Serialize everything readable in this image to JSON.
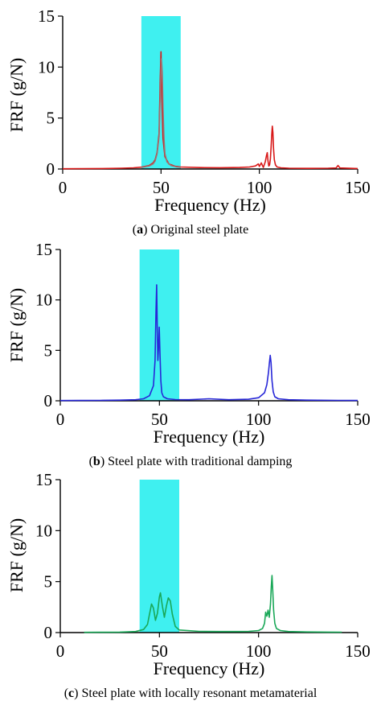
{
  "figure": {
    "background": "#ffffff",
    "band_color": "#3ff0f0",
    "axis_color": "#000000"
  },
  "chart_data": [
    {
      "type": "line",
      "caption_letter": "a",
      "caption_text": "Original steel plate",
      "xlabel": "Frequency (Hz)",
      "ylabel": "FRF (g/N)",
      "xlim": [
        0,
        150
      ],
      "ylim": [
        0,
        15
      ],
      "xticks": [
        0,
        50,
        100,
        150
      ],
      "yticks": [
        0,
        5,
        10,
        15
      ],
      "highlight_band": [
        40,
        60
      ],
      "series": [
        {
          "color": "#d81818",
          "x": [
            0,
            10,
            20,
            30,
            36,
            40,
            44,
            46,
            47,
            48,
            49,
            49.6,
            50,
            50.4,
            51,
            52,
            54,
            57,
            60,
            70,
            80,
            90,
            95,
            98,
            99.5,
            100,
            101,
            102,
            103,
            103.6,
            104,
            104.4,
            104.8,
            105.2,
            105.6,
            106,
            106.3,
            106.6,
            106.9,
            107.2,
            107.6,
            108.2,
            109,
            111,
            115,
            125,
            135,
            139,
            140,
            141,
            150
          ],
          "y": [
            0.02,
            0.03,
            0.05,
            0.08,
            0.12,
            0.18,
            0.35,
            0.6,
            0.9,
            1.6,
            3.5,
            9.0,
            11.5,
            7.0,
            3.0,
            1.2,
            0.5,
            0.28,
            0.2,
            0.14,
            0.13,
            0.15,
            0.2,
            0.3,
            0.5,
            0.25,
            0.6,
            0.15,
            0.7,
            1.3,
            1.6,
            0.8,
            0.3,
            0.4,
            1.0,
            2.2,
            3.4,
            4.2,
            3.6,
            2.0,
            0.9,
            0.4,
            0.2,
            0.12,
            0.08,
            0.06,
            0.08,
            0.1,
            0.35,
            0.1,
            0.05
          ]
        },
        {
          "color": "#a07070",
          "x": [
            40,
            44,
            46,
            47,
            48,
            49,
            49.7,
            50.2,
            50.6,
            51,
            51.5,
            52,
            53,
            55,
            58,
            60
          ],
          "y": [
            0.15,
            0.3,
            0.5,
            0.8,
            1.5,
            3.2,
            8.0,
            10.8,
            9.5,
            6.0,
            3.0,
            1.5,
            0.7,
            0.35,
            0.2,
            0.15
          ]
        }
      ]
    },
    {
      "type": "line",
      "caption_letter": "b",
      "caption_text": "Steel plate with traditional damping",
      "xlabel": "Frequency (Hz)",
      "ylabel": "FRF (g/N)",
      "xlim": [
        0,
        150
      ],
      "ylim": [
        0,
        15
      ],
      "xticks": [
        0,
        50,
        100,
        150
      ],
      "yticks": [
        0,
        5,
        10,
        15
      ],
      "highlight_band": [
        40,
        60
      ],
      "series": [
        {
          "color": "#2828d8",
          "x": [
            0,
            10,
            20,
            30,
            38,
            42,
            45,
            47,
            47.8,
            48.3,
            48.6,
            48.9,
            49.2,
            49.5,
            49.9,
            50.3,
            50.7,
            51.2,
            52,
            54,
            58,
            65,
            75,
            85,
            95,
            100,
            103,
            104.2,
            105,
            105.5,
            105.9,
            106.3,
            106.8,
            107.4,
            108.2,
            110,
            115,
            125,
            140,
            150
          ],
          "y": [
            0.02,
            0.03,
            0.04,
            0.06,
            0.1,
            0.2,
            0.5,
            1.5,
            4.0,
            9.0,
            11.5,
            7.5,
            4.0,
            5.0,
            7.3,
            4.5,
            2.0,
            0.8,
            0.4,
            0.2,
            0.12,
            0.1,
            0.2,
            0.1,
            0.15,
            0.3,
            0.8,
            1.6,
            2.8,
            3.8,
            4.5,
            3.8,
            2.0,
            0.9,
            0.4,
            0.2,
            0.1,
            0.06,
            0.04,
            0.03
          ]
        }
      ]
    },
    {
      "type": "line",
      "caption_letter": "c",
      "caption_text": "Steel plate with locally resonant metamaterial",
      "xlabel": "Frequency (Hz)",
      "ylabel": "FRF (g/N)",
      "xlim": [
        0,
        150
      ],
      "ylim": [
        0,
        15
      ],
      "xticks": [
        0,
        50,
        100,
        150
      ],
      "yticks": [
        0,
        5,
        10,
        15
      ],
      "highlight_band": [
        40,
        60
      ],
      "series": [
        {
          "color": "#1aa858",
          "x": [
            12,
            20,
            30,
            38,
            42,
            44,
            45,
            46,
            47,
            48,
            49,
            50,
            50.5,
            51.5,
            52.5,
            53.5,
            54.5,
            55.5,
            56.5,
            58,
            60,
            70,
            80,
            90,
            95,
            100,
            102,
            103,
            103.6,
            104.2,
            104.8,
            105.4,
            106,
            106.4,
            106.8,
            107.2,
            107.6,
            108.2,
            109,
            111,
            115,
            125,
            135,
            142
          ],
          "y": [
            0.02,
            0.03,
            0.05,
            0.1,
            0.3,
            0.8,
            1.8,
            2.8,
            2.4,
            1.2,
            1.9,
            3.5,
            3.9,
            2.6,
            1.5,
            2.6,
            3.4,
            3.1,
            1.8,
            0.6,
            0.25,
            0.12,
            0.1,
            0.1,
            0.12,
            0.2,
            0.4,
            0.9,
            2.0,
            1.6,
            2.2,
            1.5,
            2.8,
            4.5,
            5.6,
            4.0,
            2.2,
            0.9,
            0.4,
            0.2,
            0.1,
            0.06,
            0.05,
            0.04
          ]
        }
      ]
    }
  ]
}
